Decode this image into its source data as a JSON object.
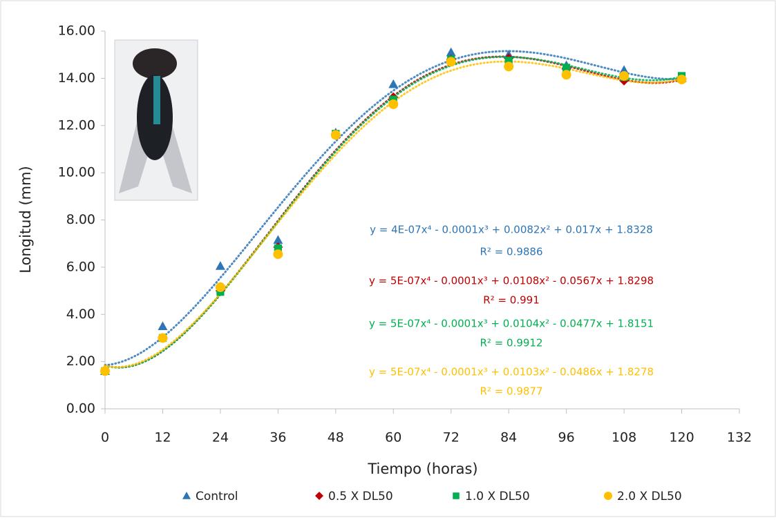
{
  "chart_data": {
    "type": "scatter",
    "x_label": "Tiempo (horas)",
    "y_label": "Longitud (mm)",
    "x": [
      0,
      12,
      24,
      36,
      48,
      60,
      72,
      84,
      96,
      108,
      120
    ],
    "xlim": [
      0,
      132
    ],
    "xticks": [
      0,
      12,
      24,
      36,
      48,
      60,
      72,
      84,
      96,
      108,
      120,
      132
    ],
    "ylim": [
      0,
      16
    ],
    "yticks": [
      {
        "value": 0,
        "label": "0.00"
      },
      {
        "value": 2,
        "label": "2.00"
      },
      {
        "value": 4,
        "label": "4.00"
      },
      {
        "value": 6,
        "label": "6.00"
      },
      {
        "value": 8,
        "label": "8.00"
      },
      {
        "value": 10,
        "label": "10.00"
      },
      {
        "value": 12,
        "label": "12.00"
      },
      {
        "value": 14,
        "label": "14.00"
      },
      {
        "value": 16,
        "label": "16.00"
      }
    ],
    "trendline_order": 4,
    "series": [
      {
        "name": "Control",
        "color": "#2e75b6",
        "marker": "triangle",
        "values": [
          1.6,
          3.5,
          6.05,
          7.15,
          11.7,
          13.75,
          15.1,
          15.0,
          14.55,
          14.35,
          14.0
        ],
        "equation": "y = 4E-07x⁴ - 0.0001x³ + 0.0082x² + 0.017x + 1.8328",
        "r2": "R² = 0.9886"
      },
      {
        "name": "0.5 X DL50",
        "color": "#c00000",
        "marker": "diamond",
        "values": [
          1.6,
          3.0,
          5.0,
          6.85,
          11.6,
          13.2,
          14.8,
          14.85,
          14.4,
          13.9,
          14.0
        ],
        "equation": "y = 5E-07x⁴ - 0.0001x³ + 0.0108x² - 0.0567x + 1.8298",
        "r2": "R² = 0.991"
      },
      {
        "name": "1.0 X DL50",
        "color": "#00b050",
        "marker": "square",
        "values": [
          1.6,
          3.0,
          4.95,
          6.8,
          11.65,
          13.1,
          14.8,
          14.75,
          14.45,
          14.05,
          14.1
        ],
        "equation": "y = 5E-07x⁴ - 0.0001x³ + 0.0104x² - 0.0477x + 1.8151",
        "r2": "R² = 0.9912"
      },
      {
        "name": "2.0 X DL50",
        "color": "#ffc000",
        "marker": "circle",
        "values": [
          1.6,
          3.0,
          5.15,
          6.55,
          11.6,
          12.9,
          14.7,
          14.5,
          14.15,
          14.1,
          13.95
        ],
        "equation": "y = 5E-07x⁴ - 0.0001x³ + 0.0103x² - 0.0486x + 1.8278",
        "r2": "R² = 0.9877"
      }
    ]
  }
}
